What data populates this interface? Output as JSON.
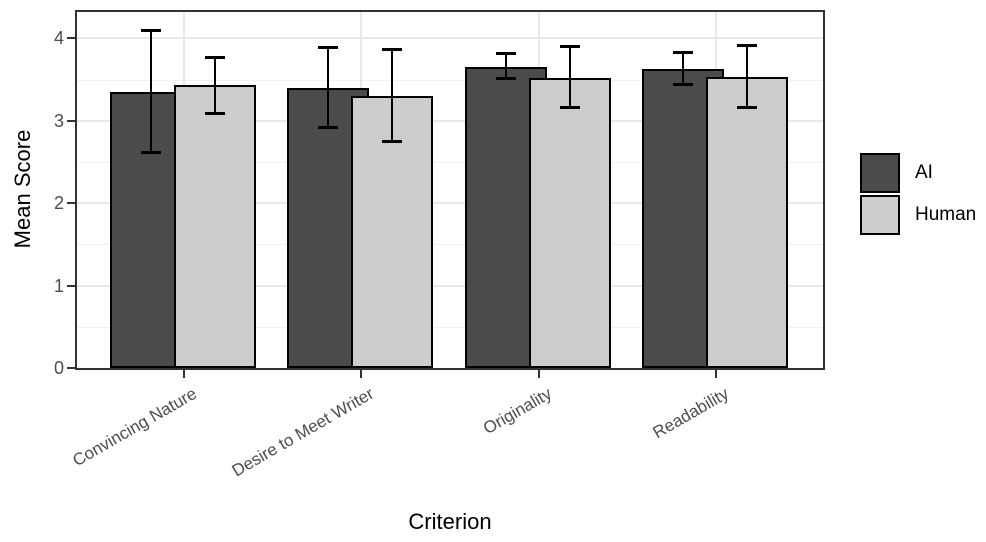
{
  "chart_data": {
    "type": "bar",
    "title": "",
    "xlabel": "Criterion",
    "ylabel": "Mean Score",
    "categories": [
      "Convincing Nature",
      "Desire to Meet Writer",
      "Originality",
      "Readability"
    ],
    "series": [
      {
        "name": "AI",
        "color": "#4b4b4b",
        "values": [
          3.35,
          3.4,
          3.65,
          3.63
        ],
        "error_low": [
          2.6,
          2.9,
          3.5,
          3.42
        ],
        "error_high": [
          4.11,
          3.91,
          3.83,
          3.85
        ]
      },
      {
        "name": "Human",
        "color": "#cccccc",
        "values": [
          3.43,
          3.3,
          3.52,
          3.53
        ],
        "error_low": [
          3.07,
          2.73,
          3.14,
          3.14
        ],
        "error_high": [
          3.79,
          3.88,
          3.92,
          3.93
        ]
      }
    ],
    "ylim": [
      0,
      4.32
    ],
    "yticks": [
      "0",
      "1",
      "2",
      "3",
      "4"
    ],
    "minor_gridlines": [
      0.5,
      1.5,
      2.5,
      3.5
    ],
    "grid": true,
    "legend_position": "right",
    "error_bars": true,
    "colors": {
      "background": "#ffffff",
      "panel_border": "#333333",
      "grid_major": "#e8e8e8",
      "grid_minor": "#f1f1f1",
      "tick": "#333333",
      "tick_label": "#4d4d4d",
      "axis_title": "#000000",
      "bar_outline": "#000000",
      "error_bar": "#000000"
    }
  }
}
